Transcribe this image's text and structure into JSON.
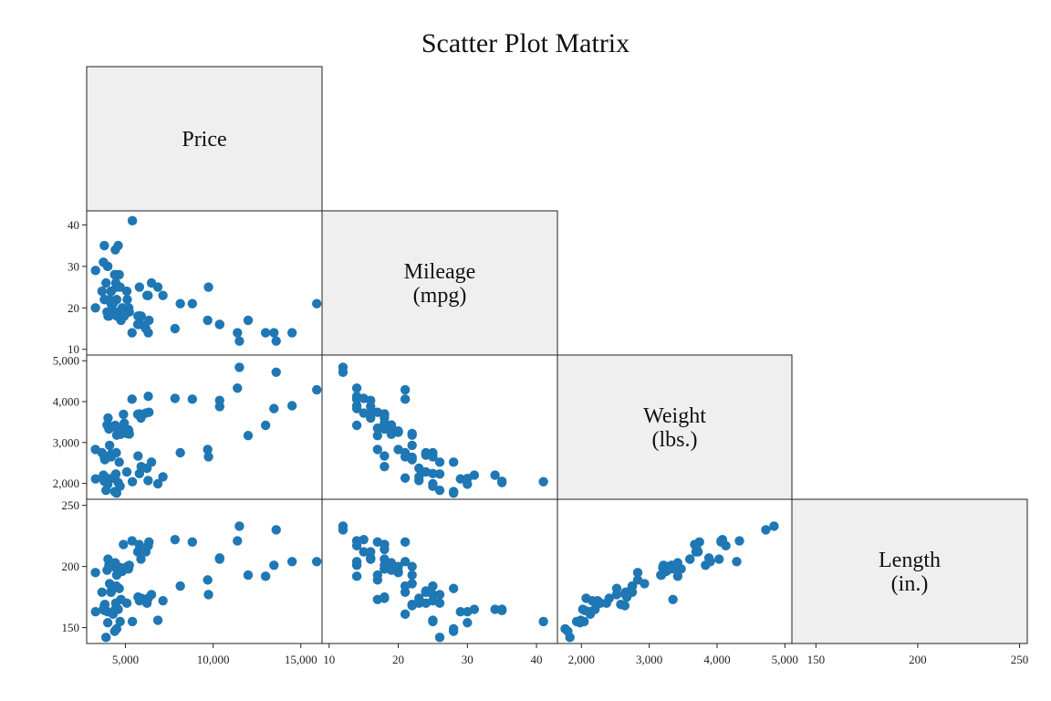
{
  "chart_data": {
    "type": "scatter",
    "title": "Scatter Plot Matrix",
    "point_color": "#1f77b4",
    "diag_color": "#efefef",
    "variables": [
      {
        "key": "price",
        "label": [
          "Price"
        ],
        "range": [
          3000,
          16000
        ],
        "ticks": [
          5000,
          10000,
          15000
        ],
        "tick_labels": [
          "5,000",
          "10,000",
          "15,000"
        ]
      },
      {
        "key": "mpg",
        "label": [
          "Mileage",
          "(mpg)"
        ],
        "range": [
          9.5,
          42.5
        ],
        "ticks": [
          10,
          20,
          30,
          40
        ],
        "tick_labels": [
          "10",
          "20",
          "30",
          "40"
        ]
      },
      {
        "key": "weight",
        "label": [
          "Weight",
          "(lbs.)"
        ],
        "range": [
          1700,
          5050
        ],
        "ticks": [
          2000,
          3000,
          4000,
          5000
        ],
        "tick_labels": [
          "2,000",
          "3,000",
          "4,000",
          "5,000"
        ]
      },
      {
        "key": "length",
        "label": [
          "Length",
          "(in.)"
        ],
        "range": [
          140,
          252
        ],
        "ticks": [
          150,
          200,
          250
        ],
        "tick_labels": [
          "150",
          "200",
          "250"
        ]
      }
    ],
    "points": [
      [
        4099,
        22,
        2930,
        186
      ],
      [
        4749,
        17,
        3350,
        173
      ],
      [
        3799,
        22,
        2640,
        168
      ],
      [
        4816,
        20,
        3250,
        196
      ],
      [
        7827,
        15,
        4080,
        222
      ],
      [
        5788,
        18,
        3670,
        218
      ],
      [
        4453,
        26,
        2230,
        170
      ],
      [
        5189,
        20,
        3280,
        200
      ],
      [
        10372,
        16,
        3880,
        207
      ],
      [
        4082,
        19,
        3400,
        200
      ],
      [
        11385,
        14,
        4330,
        221
      ],
      [
        14500,
        14,
        3900,
        204
      ],
      [
        15906,
        21,
        4290,
        204
      ],
      [
        3299,
        29,
        2110,
        163
      ],
      [
        5705,
        16,
        3690,
        212
      ],
      [
        4504,
        22,
        3180,
        193
      ],
      [
        5104,
        22,
        3220,
        200
      ],
      [
        3667,
        24,
        2750,
        179
      ],
      [
        3955,
        19,
        3430,
        197
      ],
      [
        3984,
        30,
        2120,
        163
      ],
      [
        4010,
        18,
        3600,
        206
      ],
      [
        5886,
        16,
        3600,
        206
      ],
      [
        6342,
        17,
        3740,
        220
      ],
      [
        4389,
        28,
        1800,
        147
      ],
      [
        4187,
        21,
        2650,
        179
      ],
      [
        11497,
        12,
        4840,
        233
      ],
      [
        13594,
        12,
        4720,
        230
      ],
      [
        13466,
        14,
        3830,
        201
      ],
      [
        3829,
        22,
        2580,
        169
      ],
      [
        5379,
        14,
        4060,
        221
      ],
      [
        6165,
        15,
        3720,
        212
      ],
      [
        4516,
        18,
        3370,
        198
      ],
      [
        6303,
        14,
        4130,
        217
      ],
      [
        3291,
        20,
        2830,
        195
      ],
      [
        8814,
        21,
        4060,
        220
      ],
      [
        5172,
        19,
        3310,
        198
      ],
      [
        4733,
        19,
        3300,
        198
      ],
      [
        4890,
        18,
        3690,
        218
      ],
      [
        4181,
        19,
        3370,
        200
      ],
      [
        4195,
        24,
        2720,
        180
      ],
      [
        10371,
        16,
        4030,
        206
      ],
      [
        4647,
        28,
        2520,
        182
      ],
      [
        4425,
        34,
        2200,
        165
      ],
      [
        4482,
        25,
        2750,
        184
      ],
      [
        6486,
        26,
        2520,
        177
      ],
      [
        4060,
        18,
        3330,
        201
      ],
      [
        5798,
        18,
        3700,
        214
      ],
      [
        4934,
        18,
        3470,
        198
      ],
      [
        5222,
        19,
        3210,
        201
      ],
      [
        4723,
        19,
        3200,
        199
      ],
      [
        4424,
        19,
        3420,
        203
      ],
      [
        4172,
        24,
        2690,
        179
      ],
      [
        9690,
        17,
        2830,
        189
      ],
      [
        6295,
        23,
        2070,
        174
      ],
      [
        9735,
        25,
        2650,
        177
      ],
      [
        6229,
        23,
        2370,
        170
      ],
      [
        4589,
        35,
        2020,
        165
      ],
      [
        5079,
        24,
        2280,
        170
      ],
      [
        8129,
        21,
        2750,
        184
      ],
      [
        4296,
        21,
        2130,
        161
      ],
      [
        5799,
        25,
        2240,
        172
      ],
      [
        4499,
        28,
        1760,
        149
      ],
      [
        3995,
        30,
        1980,
        154
      ],
      [
        12990,
        14,
        3420,
        192
      ],
      [
        3895,
        26,
        1830,
        142
      ],
      [
        3798,
        35,
        2050,
        164
      ],
      [
        5899,
        18,
        2410,
        174
      ],
      [
        3748,
        31,
        2200,
        165
      ],
      [
        5719,
        18,
        2670,
        175
      ],
      [
        7140,
        23,
        2160,
        172
      ],
      [
        5397,
        41,
        2040,
        155
      ],
      [
        4697,
        25,
        1930,
        155
      ],
      [
        6850,
        25,
        1990,
        156
      ],
      [
        11995,
        17,
        3170,
        193
      ]
    ]
  }
}
